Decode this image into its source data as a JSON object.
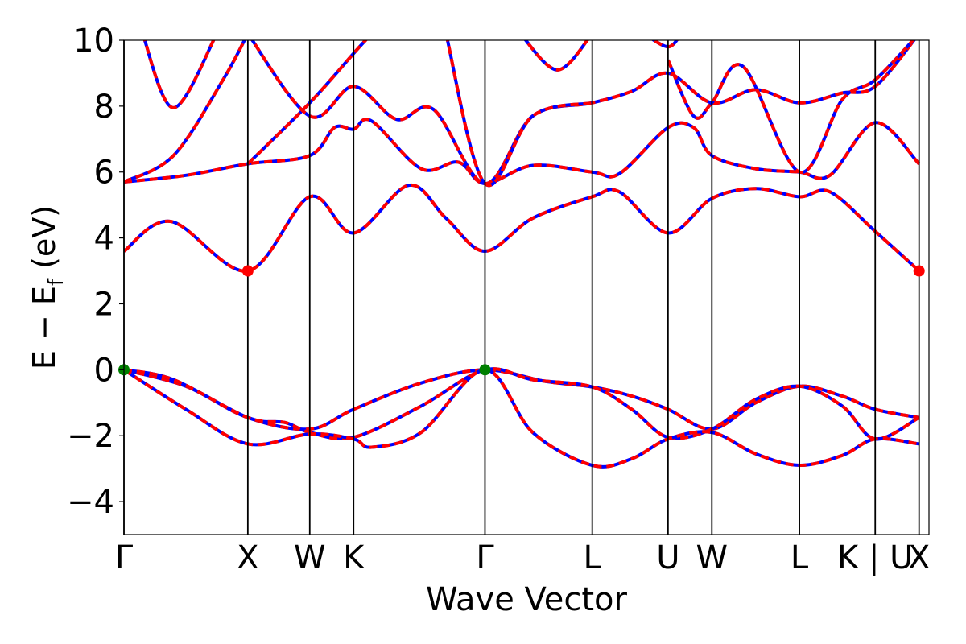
{
  "chart_data": {
    "type": "line",
    "title": "",
    "xlabel": "Wave Vector",
    "ylabel_main": "E − E",
    "ylabel_sub": "f",
    "ylabel_tail": " (eV)",
    "ylim": [
      -5,
      10
    ],
    "yticks": [
      -4,
      -2,
      0,
      2,
      4,
      6,
      8,
      10
    ],
    "ytick_labels": [
      "−4",
      "−2",
      "0",
      "2",
      "4",
      "6",
      "8",
      "10"
    ],
    "xlim": [
      0,
      6.5
    ],
    "kpoints": [
      {
        "label": "Γ",
        "x": 0.0
      },
      {
        "label": "X",
        "x": 1.0
      },
      {
        "label": "W",
        "x": 1.5
      },
      {
        "label": "K",
        "x": 1.854
      },
      {
        "label": "Γ",
        "x": 2.915
      },
      {
        "label": "L",
        "x": 3.781
      },
      {
        "label": "U",
        "x": 4.393
      },
      {
        "label": "W",
        "x": 4.747
      },
      {
        "label": "L",
        "x": 5.454
      },
      {
        "label": "K | U",
        "x": 6.066
      },
      {
        "label": "X",
        "x": 6.42
      }
    ],
    "grid": false,
    "series": [
      {
        "style": "blue solid",
        "color": "#0000ff"
      },
      {
        "style": "red dashed",
        "color": "#ff0000"
      }
    ],
    "bands": [
      [
        [
          0,
          0
        ],
        [
          0.5,
          -0.5
        ],
        [
          1.0,
          -1.45
        ],
        [
          1.5,
          -1.8
        ],
        [
          1.854,
          -1.2
        ],
        [
          2.4,
          -0.4
        ],
        [
          2.915,
          0
        ],
        [
          3.4,
          -0.35
        ],
        [
          3.781,
          -0.52
        ],
        [
          4.1,
          -0.8
        ],
        [
          4.393,
          -1.2
        ],
        [
          4.747,
          -1.8
        ],
        [
          5.1,
          -1.0
        ],
        [
          5.454,
          -0.5
        ],
        [
          5.8,
          -0.8
        ],
        [
          6.066,
          -1.2
        ],
        [
          6.42,
          -1.45
        ]
      ],
      [
        [
          0,
          0
        ],
        [
          0.4,
          -0.3
        ],
        [
          1.0,
          -1.45
        ],
        [
          1.3,
          -1.6
        ],
        [
          1.5,
          -1.9
        ],
        [
          1.854,
          -2.05
        ],
        [
          2.4,
          -1.1
        ],
        [
          2.915,
          0
        ],
        [
          3.3,
          -0.3
        ],
        [
          3.781,
          -0.52
        ],
        [
          4.1,
          -1.2
        ],
        [
          4.393,
          -2.05
        ],
        [
          4.747,
          -1.8
        ],
        [
          5.1,
          -0.9
        ],
        [
          5.454,
          -0.5
        ],
        [
          5.8,
          -1.1
        ],
        [
          6.066,
          -2.1
        ],
        [
          6.42,
          -1.45
        ]
      ],
      [
        [
          0,
          0
        ],
        [
          0.5,
          -1.2
        ],
        [
          1.0,
          -2.25
        ],
        [
          1.5,
          -1.95
        ],
        [
          1.854,
          -2.1
        ],
        [
          2.0,
          -2.35
        ],
        [
          2.4,
          -1.9
        ],
        [
          2.915,
          0
        ],
        [
          3.3,
          -1.9
        ],
        [
          3.781,
          -2.9
        ],
        [
          4.1,
          -2.7
        ],
        [
          4.393,
          -2.1
        ],
        [
          4.747,
          -1.9
        ],
        [
          5.1,
          -2.55
        ],
        [
          5.454,
          -2.9
        ],
        [
          5.8,
          -2.6
        ],
        [
          6.066,
          -2.1
        ],
        [
          6.42,
          -2.25
        ]
      ],
      [
        [
          0,
          3.6
        ],
        [
          0.38,
          4.5
        ],
        [
          1.0,
          3.0
        ],
        [
          1.5,
          5.25
        ],
        [
          1.854,
          4.15
        ],
        [
          2.3,
          5.6
        ],
        [
          2.6,
          4.6
        ],
        [
          2.915,
          3.6
        ],
        [
          3.3,
          4.6
        ],
        [
          3.781,
          5.25
        ],
        [
          4.0,
          5.4
        ],
        [
          4.393,
          4.15
        ],
        [
          4.747,
          5.2
        ],
        [
          5.1,
          5.5
        ],
        [
          5.454,
          5.25
        ],
        [
          5.7,
          5.4
        ],
        [
          6.066,
          4.2
        ],
        [
          6.42,
          3.0
        ]
      ],
      [
        [
          0,
          5.7
        ],
        [
          0.5,
          5.9
        ],
        [
          1.0,
          6.25
        ],
        [
          1.5,
          6.5
        ],
        [
          1.7,
          7.35
        ],
        [
          1.854,
          7.3
        ],
        [
          2.0,
          7.55
        ],
        [
          2.4,
          6.1
        ],
        [
          2.7,
          6.3
        ],
        [
          2.915,
          5.65
        ],
        [
          3.3,
          6.2
        ],
        [
          3.781,
          6.0
        ],
        [
          4.0,
          5.95
        ],
        [
          4.393,
          7.35
        ],
        [
          4.6,
          7.35
        ],
        [
          4.747,
          6.5
        ],
        [
          5.1,
          6.1
        ],
        [
          5.454,
          6.0
        ],
        [
          5.7,
          5.9
        ],
        [
          6.066,
          7.5
        ],
        [
          6.42,
          6.25
        ]
      ],
      [
        [
          0,
          5.7
        ],
        [
          0.4,
          6.5
        ],
        [
          0.8,
          8.8
        ],
        [
          1.0,
          10.2
        ]
      ],
      [
        [
          1.0,
          6.25
        ],
        [
          1.5,
          8.1
        ],
        [
          1.854,
          9.6
        ],
        [
          2.0,
          10.2
        ]
      ],
      [
        [
          1.0,
          10.2
        ],
        [
          1.5,
          7.7
        ],
        [
          1.854,
          8.6
        ],
        [
          2.2,
          7.6
        ],
        [
          2.5,
          7.9
        ],
        [
          2.915,
          5.65
        ],
        [
          3.3,
          7.7
        ],
        [
          3.781,
          8.1
        ],
        [
          4.1,
          8.45
        ],
        [
          4.393,
          9.0
        ],
        [
          4.747,
          8.1
        ],
        [
          5.1,
          8.5
        ],
        [
          5.454,
          8.1
        ],
        [
          5.8,
          8.4
        ],
        [
          6.066,
          8.6
        ],
        [
          6.42,
          10.2
        ]
      ],
      [
        [
          0.15,
          10.2
        ],
        [
          0.4,
          7.95
        ],
        [
          0.75,
          10.2
        ]
      ],
      [
        [
          2.6,
          10.2
        ],
        [
          2.915,
          5.65
        ],
        [
          3.3,
          7.7
        ],
        [
          3.781,
          8.1
        ]
      ],
      [
        [
          3.2,
          10.2
        ],
        [
          3.5,
          9.1
        ],
        [
          3.781,
          10.2
        ]
      ],
      [
        [
          4.393,
          9.4
        ],
        [
          4.6,
          7.7
        ],
        [
          4.747,
          8.1
        ],
        [
          5.0,
          9.2
        ],
        [
          5.454,
          6.0
        ],
        [
          5.8,
          8.2
        ],
        [
          6.066,
          8.8
        ],
        [
          6.42,
          10.2
        ]
      ],
      [
        [
          4.2,
          10.2
        ],
        [
          4.393,
          9.8
        ],
        [
          4.5,
          10.2
        ]
      ]
    ],
    "markers": [
      {
        "x": 0.0,
        "y": 0.0,
        "color": "#008000"
      },
      {
        "x": 2.915,
        "y": 0.0,
        "color": "#008000"
      },
      {
        "x": 1.0,
        "y": 3.0,
        "color": "#ff0000"
      },
      {
        "x": 6.42,
        "y": 3.0,
        "color": "#ff0000"
      }
    ]
  }
}
